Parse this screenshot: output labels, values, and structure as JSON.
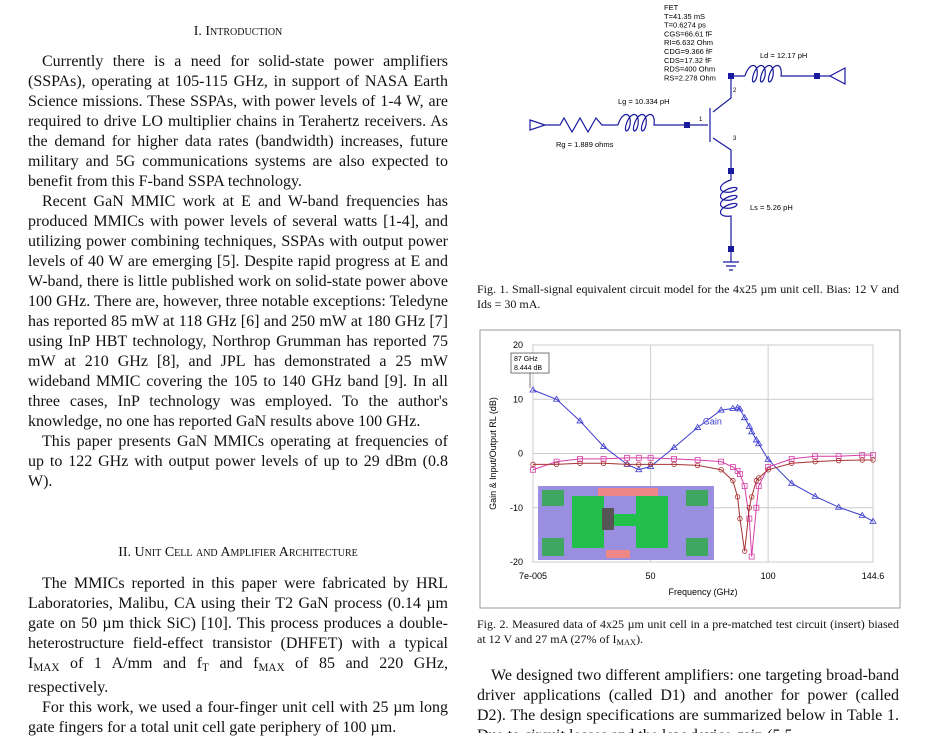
{
  "section1": {
    "heading": "I. Introduction",
    "paragraphs": [
      [
        "Currently there is a need for solid-state power amplifiers (SSPAs), operating at 105-115 GHz, in support of NASA Earth Science missions. These SSPAs, with power levels of 1-4 W, are required to drive LO multiplier chains in Terahertz receivers. As the demand for higher data rates (bandwidth) increases, future military and 5G communications systems are also expected to benefit from this F-band SSPA technology."
      ],
      [
        "Recent GaN MMIC work at E and W-band frequencies has produced MMICs with power levels of several watts [1-4], and utilizing power combining techniques, SSPAs with output power levels of 40 W are emerging [5]. Despite rapid progress at E and W-band, there is little published work on solid-state power above 100 GHz. There are, however, three notable exceptions: Teledyne has reported 85 mW at 118 GHz [6] and 250 mW at 180 GHz [7] using InP HBT technology, Northrop Grumman has reported 75 mW at 210 GHz [8], and JPL has demonstrated a 25 mW wideband MMIC covering the 105 to 140 GHz band [9]. In all three cases, InP technology was employed. To the author's knowledge, no one has reported GaN results above 100 GHz."
      ],
      [
        "This paper presents GaN MMICs operating at frequencies of up to 122 GHz with output power levels of up to 29 dBm (0.8 W)."
      ]
    ]
  },
  "section2": {
    "heading": "II. Unit Cell and Amplifier Architecture",
    "paragraphs": [
      [
        "The MMICs reported in this paper were fabricated by HRL Laboratories, Malibu, CA using their T2 GaN process (0.14 µm gate on 50 µm thick SiC) [10]. This process produces a double-heterostructure field-effect transistor (DHFET) with a typical I",
        "MAX",
        " of 1 A/mm and f",
        "T",
        " and f",
        "MAX",
        " of 85 and 220 GHz, respectively."
      ],
      [
        "For this work, we used a four-finger unit cell with 25 µm long gate fingers for a total unit cell gate periphery of 100 µm."
      ]
    ]
  },
  "figure1": {
    "fet_params": [
      "FET",
      "T=41.35 mS",
      "T=0.6274 ps",
      "CGS=66.61 fF",
      "RI=6.632 Ohm",
      "CDG=9.366 fF",
      "CDS=17.32 fF",
      "RDS=400 Ohm",
      "RS=2.278 Ohm"
    ],
    "ld": "Ld = 12.17 pH",
    "lg": "Lg = 10.334 pH",
    "rg": "Rg = 1.889 ohms",
    "ls": "Ls = 5.26 pH",
    "pins": [
      "1",
      "2",
      "3"
    ],
    "caption": "Fig. 1.  Small-signal equivalent circuit model for the 4x25 µm unit cell. Bias: 12 V and Ids = 30 mA."
  },
  "chart_data": {
    "type": "line",
    "xlabel": "Frequency (GHz)",
    "ylabel": "Gain & Input/Output RL (dB)",
    "x": [
      7e-05,
      10,
      20,
      30,
      40,
      45,
      50,
      60,
      70,
      80,
      85,
      87,
      88,
      90,
      92,
      93,
      95,
      96,
      100,
      110,
      120,
      130,
      140,
      144.6
    ],
    "series": [
      {
        "name": "Gain",
        "color": "#3b3bd0",
        "marker": "triangle",
        "values": [
          11.7,
          10,
          6,
          1.3,
          -2,
          -3,
          -2.4,
          1.1,
          4.8,
          8,
          8.3,
          8.444,
          8.2,
          6.6,
          5,
          4,
          2.5,
          1.8,
          -1.1,
          -5.5,
          -7.9,
          -9.9,
          -11.4,
          -12.5
        ]
      },
      {
        "color": "#d63fa8",
        "marker": "square",
        "values": [
          -3,
          -1.5,
          -1,
          -1,
          -0.8,
          -0.8,
          -0.8,
          -1,
          -1.2,
          -1.5,
          -2.5,
          -3.2,
          -3.8,
          -6,
          -12,
          -19,
          -10,
          -6,
          -2.5,
          -1,
          -0.5,
          -0.5,
          -0.3,
          -0.3
        ]
      },
      {
        "color": "#a83232",
        "marker": "circle",
        "values": [
          -2,
          -2,
          -1.8,
          -1.8,
          -2,
          -2,
          -2,
          -2,
          -2.2,
          -3,
          -5,
          -8,
          -12,
          -18,
          -10,
          -8,
          -5,
          -4.5,
          -3,
          -1.8,
          -1.5,
          -1.3,
          -1.2,
          -1.2
        ]
      }
    ],
    "xlim": [
      7e-05,
      144.6
    ],
    "xticks": [
      {
        "value": 7e-05,
        "label": "7e-005"
      },
      50,
      100,
      144.6
    ],
    "ylim": [
      -20,
      20
    ],
    "yticks": [
      20,
      10,
      0,
      -10,
      -20
    ],
    "grid": true,
    "marker_label": [
      "87 GHz",
      "8.444 dB"
    ]
  },
  "figure2": {
    "caption": [
      "Fig. 2.  Measured data of 4x25 µm unit cell in a pre-matched test circuit (insert) biased at 12 V and 27 mA (27% of I",
      "MAX",
      ")."
    ]
  },
  "right_paragraph": [
    "We designed two different amplifiers: one targeting broad-band driver applications (called D1) and another for power (called D2). The design specifications are summarized below in Table 1. Due to circuit losses and the low device gain (5.5"
  ]
}
